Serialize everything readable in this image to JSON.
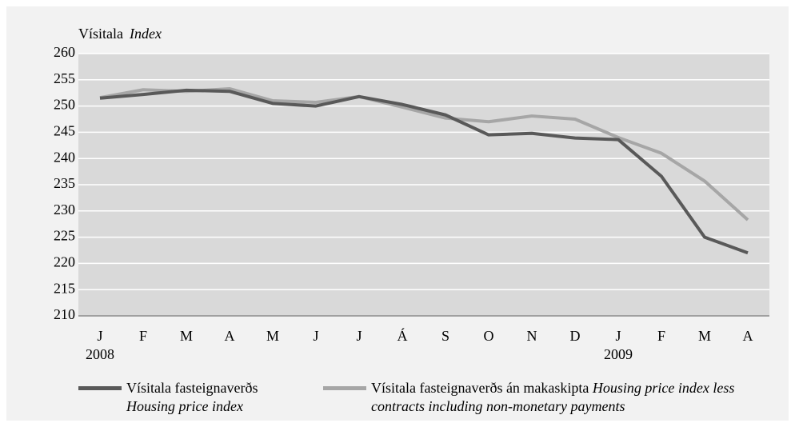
{
  "chart_data": {
    "type": "line",
    "y_axis_title": "Vísitala",
    "y_axis_title_en": "Index",
    "categories": [
      "J",
      "F",
      "M",
      "A",
      "M",
      "J",
      "J",
      "Á",
      "S",
      "O",
      "N",
      "D",
      "J",
      "F",
      "M",
      "A"
    ],
    "category_years": [
      "2008",
      null,
      null,
      null,
      null,
      null,
      null,
      null,
      null,
      null,
      null,
      null,
      "2009",
      null,
      null,
      null
    ],
    "series": [
      {
        "name": "Vísitala fasteignaverðs",
        "name_en": "Housing price index",
        "color": "#595959",
        "values": [
          251.5,
          252.2,
          253,
          252.8,
          250.5,
          250,
          251.8,
          250.3,
          248.3,
          244.5,
          244.8,
          243.9,
          243.6,
          236.6,
          225,
          222
        ]
      },
      {
        "name": "Vísitala fasteignaverðs án makaskipta",
        "name_en": "Housing price index less contracts including non-monetary payments",
        "color": "#a6a6a6",
        "values": [
          251.6,
          253.1,
          252.8,
          253.3,
          251,
          250.7,
          251.8,
          249.8,
          247.7,
          247,
          248.1,
          247.5,
          244,
          241,
          235.7,
          228.3
        ]
      }
    ],
    "ylim": [
      210,
      260
    ],
    "yticks": [
      210,
      215,
      220,
      225,
      230,
      235,
      240,
      245,
      250,
      255,
      260
    ],
    "grid": true
  }
}
